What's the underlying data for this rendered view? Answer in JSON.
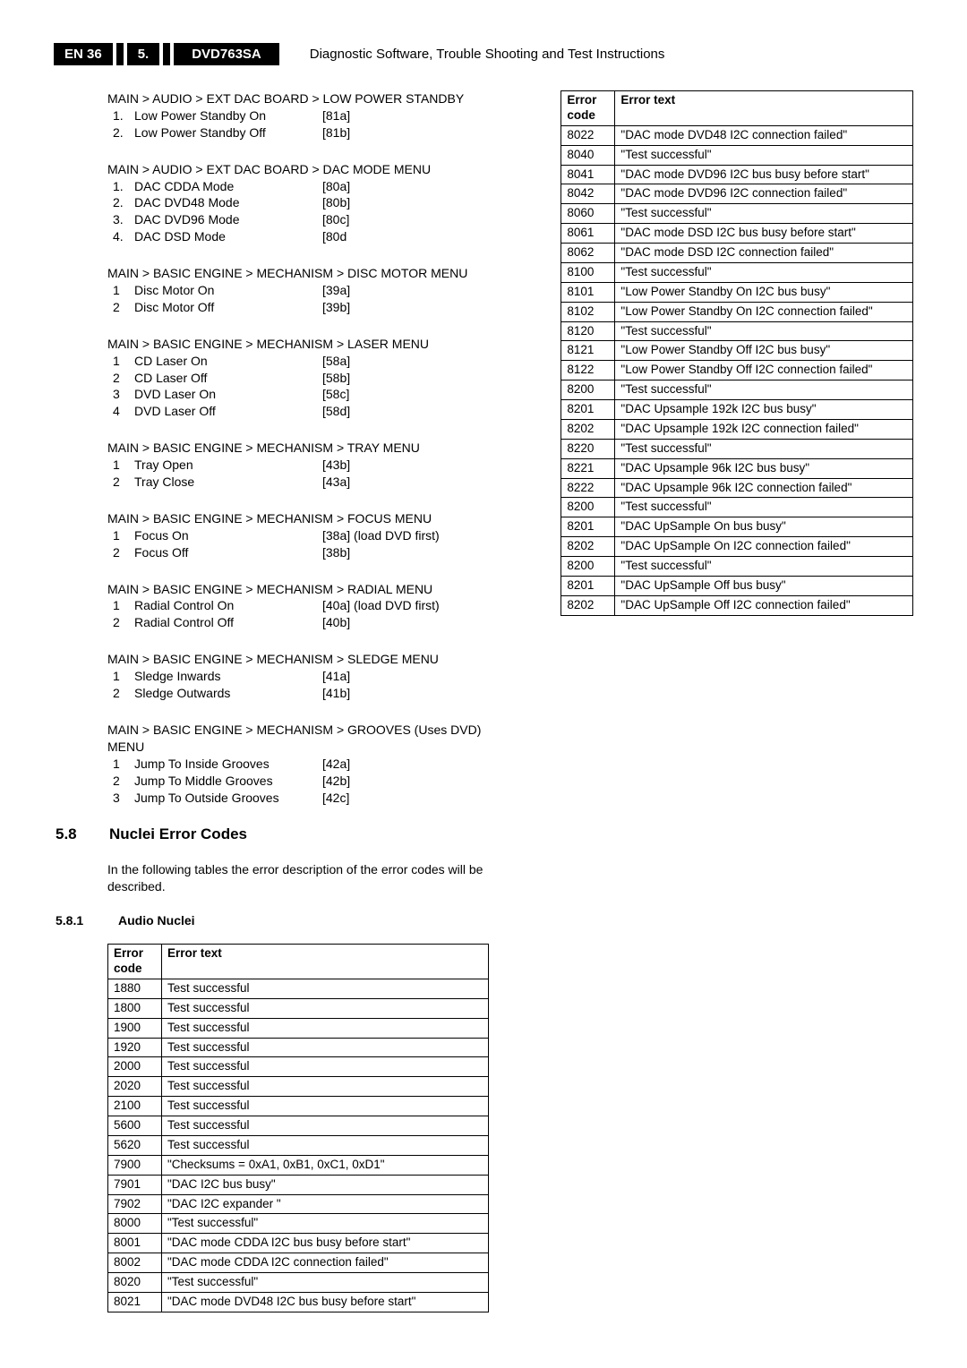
{
  "header": {
    "page_ref": "EN 36",
    "chapter_num": "5.",
    "model": "DVD763SA",
    "title": "Diagnostic Software, Trouble Shooting and Test Instructions"
  },
  "menus": [
    {
      "heading": "MAIN > AUDIO > EXT DAC BOARD > LOW POWER STANDBY",
      "items": [
        {
          "n": "1.",
          "label": "Low Power Standby On",
          "code": "[81a]"
        },
        {
          "n": "2.",
          "label": "Low Power Standby Off",
          "code": "[81b]"
        }
      ]
    },
    {
      "heading": "MAIN > AUDIO > EXT DAC BOARD > DAC MODE MENU",
      "items": [
        {
          "n": "1.",
          "label": "DAC CDDA Mode",
          "code": "[80a]"
        },
        {
          "n": "2.",
          "label": "DAC DVD48 Mode",
          "code": "[80b]"
        },
        {
          "n": "3.",
          "label": "DAC DVD96 Mode",
          "code": "[80c]"
        },
        {
          "n": "4.",
          "label": "DAC DSD Mode",
          "code": "[80d"
        }
      ]
    },
    {
      "heading": "MAIN > BASIC ENGINE > MECHANISM > DISC MOTOR MENU",
      "items": [
        {
          "n": "1",
          "label": "Disc Motor On",
          "code": "[39a]"
        },
        {
          "n": "2",
          "label": "Disc Motor Off",
          "code": "[39b]"
        }
      ]
    },
    {
      "heading": "MAIN > BASIC ENGINE > MECHANISM > LASER MENU",
      "items": [
        {
          "n": "1",
          "label": "CD Laser On",
          "code": "[58a]"
        },
        {
          "n": "2",
          "label": "CD Laser Off",
          "code": "[58b]"
        },
        {
          "n": "3",
          "label": "DVD Laser On",
          "code": "[58c]"
        },
        {
          "n": "4",
          "label": "DVD Laser Off",
          "code": "[58d]"
        }
      ]
    },
    {
      "heading": "MAIN > BASIC ENGINE > MECHANISM > TRAY MENU",
      "items": [
        {
          "n": "1",
          "label": "Tray Open",
          "code": "[43b]"
        },
        {
          "n": "2",
          "label": "Tray Close",
          "code": "[43a]"
        }
      ]
    },
    {
      "heading": "MAIN > BASIC ENGINE > MECHANISM > FOCUS MENU",
      "items": [
        {
          "n": "1",
          "label": "Focus On",
          "code": "[38a] (load DVD first)"
        },
        {
          "n": "2",
          "label": "Focus Off",
          "code": "[38b]"
        }
      ]
    },
    {
      "heading": "MAIN > BASIC ENGINE > MECHANISM > RADIAL MENU",
      "items": [
        {
          "n": "1",
          "label": "Radial Control On",
          "code": "[40a] (load DVD first)"
        },
        {
          "n": "2",
          "label": "Radial Control Off",
          "code": "[40b]"
        }
      ]
    },
    {
      "heading": "MAIN > BASIC ENGINE > MECHANISM > SLEDGE MENU",
      "items": [
        {
          "n": "1",
          "label": "Sledge Inwards",
          "code": "[41a]"
        },
        {
          "n": "2",
          "label": "Sledge Outwards",
          "code": "[41b]"
        }
      ]
    },
    {
      "heading": "MAIN > BASIC ENGINE > MECHANISM > GROOVES (Uses DVD) MENU",
      "items": [
        {
          "n": "1",
          "label": "Jump To Inside Grooves",
          "code": "[42a]"
        },
        {
          "n": "2",
          "label": "Jump To Middle Grooves",
          "code": "[42b]"
        },
        {
          "n": "3",
          "label": "Jump To Outside Grooves",
          "code": "[42c]"
        }
      ]
    }
  ],
  "section": {
    "num": "5.8",
    "title": "Nuclei Error Codes",
    "intro": "In the following tables the error description of the error codes will be described."
  },
  "subsection": {
    "num": "5.8.1",
    "title": "Audio Nuclei"
  },
  "table_headers": {
    "code": "Error code",
    "text": "Error text"
  },
  "error_table_left": [
    {
      "code": "1880",
      "text": "Test successful"
    },
    {
      "code": "1800",
      "text": "Test successful"
    },
    {
      "code": "1900",
      "text": "Test successful"
    },
    {
      "code": "1920",
      "text": "Test successful"
    },
    {
      "code": "2000",
      "text": "Test successful"
    },
    {
      "code": "2020",
      "text": "Test successful"
    },
    {
      "code": "2100",
      "text": "Test successful"
    },
    {
      "code": "5600",
      "text": "Test successful"
    },
    {
      "code": "5620",
      "text": "Test successful"
    },
    {
      "code": "7900",
      "text": "\"Checksums = 0xA1, 0xB1, 0xC1, 0xD1\""
    },
    {
      "code": "7901",
      "text": "\"DAC I2C bus busy\""
    },
    {
      "code": "7902",
      "text": "\"DAC I2C expander \""
    },
    {
      "code": "8000",
      "text": "\"Test successful\""
    },
    {
      "code": "8001",
      "text": "\"DAC mode CDDA I2C bus busy before start\""
    },
    {
      "code": "8002",
      "text": "\"DAC mode CDDA I2C connection failed\""
    },
    {
      "code": "8020",
      "text": "\"Test successful\""
    },
    {
      "code": "8021",
      "text": "\"DAC mode DVD48 I2C bus busy before start\""
    }
  ],
  "error_table_right": [
    {
      "code": "8022",
      "text": "\"DAC mode DVD48 I2C connection failed\""
    },
    {
      "code": "8040",
      "text": "\"Test successful\""
    },
    {
      "code": "8041",
      "text": "\"DAC mode DVD96 I2C bus busy before start\""
    },
    {
      "code": "8042",
      "text": "\"DAC mode DVD96 I2C connection failed\""
    },
    {
      "code": "8060",
      "text": "\"Test successful\""
    },
    {
      "code": "8061",
      "text": "\"DAC mode DSD I2C bus busy before start\""
    },
    {
      "code": "8062",
      "text": "\"DAC mode DSD I2C connection failed\""
    },
    {
      "code": "8100",
      "text": "\"Test successful\""
    },
    {
      "code": "8101",
      "text": "\"Low Power Standby On I2C bus busy\""
    },
    {
      "code": "8102",
      "text": "\"Low Power Standby On I2C connection failed\""
    },
    {
      "code": "8120",
      "text": "\"Test successful\""
    },
    {
      "code": "8121",
      "text": "\"Low Power Standby Off I2C bus busy\""
    },
    {
      "code": "8122",
      "text": "\"Low Power Standby Off I2C connection failed\""
    },
    {
      "code": "8200",
      "text": "\"Test successful\""
    },
    {
      "code": "8201",
      "text": "\"DAC Upsample 192k I2C bus busy\""
    },
    {
      "code": "8202",
      "text": "\"DAC Upsample 192k I2C connection failed\""
    },
    {
      "code": "8220",
      "text": "\"Test successful\""
    },
    {
      "code": "8221",
      "text": "\"DAC Upsample 96k I2C bus busy\""
    },
    {
      "code": "8222",
      "text": "\"DAC Upsample 96k I2C connection failed\""
    },
    {
      "code": "8200",
      "text": "\"Test successful\""
    },
    {
      "code": "8201",
      "text": "\"DAC UpSample On bus busy\""
    },
    {
      "code": "8202",
      "text": "\"DAC UpSample On I2C connection failed\""
    },
    {
      "code": "8200",
      "text": "\"Test successful\""
    },
    {
      "code": "8201",
      "text": "\"DAC UpSample Off bus busy\""
    },
    {
      "code": "8202",
      "text": "\"DAC UpSample Off I2C connection failed\""
    }
  ]
}
